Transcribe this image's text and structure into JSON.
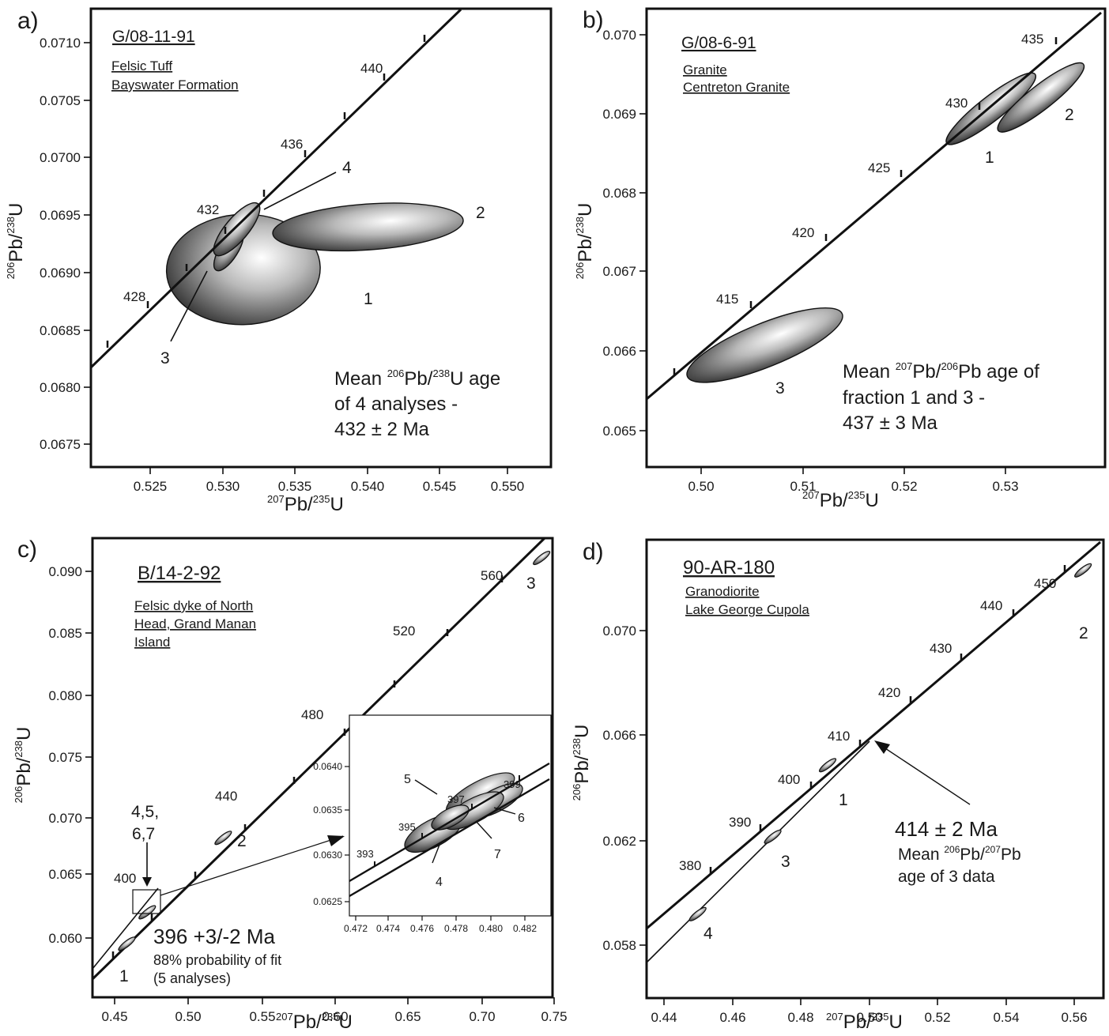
{
  "chart_data": [
    {
      "panel": "a)",
      "type": "scatter",
      "sample": "G/08-11-91",
      "rock": [
        "Felsic Tuff",
        "Bayswater Formation"
      ],
      "xlabel": "²⁰⁷Pb/²³⁵U",
      "ylabel": "²⁰⁶Pb/²³⁸U",
      "xticks": [
        "0.525",
        "0.530",
        "0.535",
        "0.540",
        "0.545",
        "0.550"
      ],
      "yticks": [
        "0.0675",
        "0.0680",
        "0.0685",
        "0.0690",
        "0.0695",
        "0.0700",
        "0.0705",
        "0.0710"
      ],
      "concordia_labels": [
        "428",
        "432",
        "436",
        "440"
      ],
      "analyses": [
        {
          "label": "1",
          "x": 0.5318,
          "y": 0.06905,
          "rx": 0.0058,
          "ry": 0.00048,
          "angle_deg": -2
        },
        {
          "label": "2",
          "x": 0.5412,
          "y": 0.06942,
          "rx": 0.0072,
          "ry": 0.0002,
          "angle_deg": -4
        },
        {
          "label": "3",
          "x": 0.5307,
          "y": 0.06922,
          "rx": 0.0018,
          "ry": 8e-05,
          "angle_deg": -58
        },
        {
          "label": "4",
          "x": 0.5313,
          "y": 0.0694,
          "rx": 0.0025,
          "ry": 0.0001,
          "angle_deg": -50
        }
      ],
      "annotation": [
        "Mean ²⁰⁶Pb/²³⁸U age",
        "of 4 analyses -",
        "432 ± 2 Ma"
      ]
    },
    {
      "panel": "b)",
      "type": "scatter",
      "sample": "G/08-6-91",
      "rock": [
        "Granite",
        "Centreton Granite"
      ],
      "xlabel": "²⁰⁷Pb/²³⁵U",
      "ylabel": "²⁰⁶Pb/²³⁸U",
      "xticks": [
        "0.50",
        "0.51",
        "0.52",
        "0.53"
      ],
      "yticks": [
        "0.065",
        "0.066",
        "0.067",
        "0.068",
        "0.069",
        "0.070"
      ],
      "concordia_labels": [
        "415",
        "420",
        "425",
        "430",
        "435"
      ],
      "analyses": [
        {
          "label": "1",
          "x": 0.5283,
          "y": 0.06901,
          "rx": 0.0055,
          "ry": 0.00015,
          "angle_deg": -38
        },
        {
          "label": "2",
          "x": 0.5332,
          "y": 0.06915,
          "rx": 0.0053,
          "ry": 0.00015,
          "angle_deg": -38
        },
        {
          "label": "3",
          "x": 0.5061,
          "y": 0.06608,
          "rx": 0.0082,
          "ry": 0.00027,
          "angle_deg": -22
        }
      ],
      "annotation": [
        "Mean ²⁰⁷Pb/²⁰⁶Pb age of",
        "fraction 1 and 3 -",
        "437 ± 3 Ma"
      ]
    },
    {
      "panel": "c)",
      "type": "scatter",
      "sample": "B/14-2-92",
      "rock": [
        "Felsic dyke of North",
        "Head, Grand Manan",
        "Island"
      ],
      "xlabel": "²⁰⁷Pb/²³⁵U",
      "ylabel": "²⁰⁶Pb/²³⁸U",
      "xticks": [
        "0.45",
        "0.50",
        "0.55",
        "0.60",
        "0.65",
        "0.70",
        "0.75"
      ],
      "yticks": [
        "0.060",
        "0.065",
        "0.070",
        "0.075",
        "0.080",
        "0.085",
        "0.090"
      ],
      "concordia_labels": [
        "400",
        "440",
        "480",
        "520",
        "560"
      ],
      "analyses": [
        {
          "label": "1",
          "x": 0.462,
          "y": 0.0609
        },
        {
          "label": "2",
          "x": 0.528,
          "y": 0.0693
        },
        {
          "label": "3",
          "x": 0.746,
          "y": 0.0915
        },
        {
          "label": "4,5,\n6,7",
          "x": 0.476,
          "y": 0.0634
        }
      ],
      "point_labels": {
        "a": "4,5,",
        "b": "6,7"
      },
      "annotation": [
        "396 +3/-2 Ma",
        "88% probability of fit",
        "(5 analyses)"
      ],
      "inset": {
        "xticks": [
          "0.472",
          "0.474",
          "0.476",
          "0.478",
          "0.480",
          "0.482"
        ],
        "yticks": [
          "0.0625",
          "0.0630",
          "0.0635",
          "0.0640"
        ],
        "concordia_labels": [
          "393",
          "395",
          "397",
          "399"
        ],
        "analyses": [
          {
            "label": "4",
            "x": 0.4755,
            "y": 0.06312
          },
          {
            "label": "5",
            "x": 0.4783,
            "y": 0.06352
          },
          {
            "label": "6",
            "x": 0.4792,
            "y": 0.06345
          },
          {
            "label": "7",
            "x": 0.4779,
            "y": 0.06335
          },
          {
            "label": "",
            "x": 0.4765,
            "y": 0.06328
          }
        ]
      }
    },
    {
      "panel": "d)",
      "type": "scatter",
      "sample": "90-AR-180",
      "rock": [
        "Granodiorite",
        "Lake George Cupola"
      ],
      "xlabel": "²⁰⁷Pb/²³⁵U",
      "ylabel": "²⁰⁶Pb/²³⁸U",
      "xticks": [
        "0.44",
        "0.46",
        "0.48",
        "0.50",
        "0.52",
        "0.54",
        "0.56"
      ],
      "yticks": [
        "0.058",
        "0.062",
        "0.066",
        "0.070"
      ],
      "concordia_labels": [
        "380",
        "390",
        "400",
        "410",
        "420",
        "430",
        "440",
        "450"
      ],
      "analyses": [
        {
          "label": "1",
          "x": 0.4876,
          "y": 0.0643
        },
        {
          "label": "2",
          "x": 0.5625,
          "y": 0.0711
        },
        {
          "label": "3",
          "x": 0.4715,
          "y": 0.0618
        },
        {
          "label": "4",
          "x": 0.4495,
          "y": 0.0591
        }
      ],
      "annotation": [
        "414 ± 2 Ma",
        "Mean ²⁰⁶Pb/²⁰⁷Pb",
        "age of 3 data"
      ]
    }
  ]
}
